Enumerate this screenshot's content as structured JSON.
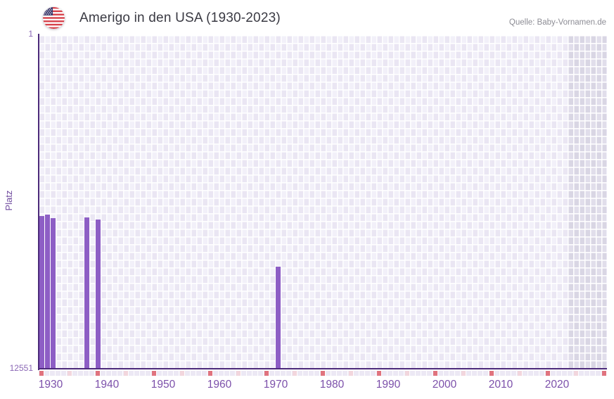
{
  "header": {
    "title": "Amerigo in den USA (1930-2023)",
    "source": "Quelle: Baby-Vornamen.de",
    "flag_icon": "us-flag-icon"
  },
  "chart_data": {
    "type": "bar",
    "title": "Amerigo in den USA (1930-2023)",
    "xlabel": "",
    "ylabel": "Platz",
    "y_axis": {
      "top_label": "1",
      "bottom_label": "12551",
      "min": 1,
      "max": 12551,
      "inverted": true
    },
    "x_axis": {
      "start_year": 1930,
      "end_year": 2030,
      "data_end_year": 2023,
      "tick_years": [
        1930,
        1940,
        1950,
        1960,
        1970,
        1980,
        1990,
        2000,
        2010,
        2020
      ],
      "tick_labels": [
        "1930",
        "1940",
        "1950",
        "1960",
        "1970",
        "1980",
        "1990",
        "2000",
        "2010",
        "2020"
      ]
    },
    "points": [
      {
        "year": 1930,
        "rank": 6820
      },
      {
        "year": 1931,
        "rank": 6765
      },
      {
        "year": 1932,
        "rank": 6895
      },
      {
        "year": 1938,
        "rank": 6880
      },
      {
        "year": 1940,
        "rank": 6960
      },
      {
        "year": 1972,
        "rank": 8740
      }
    ],
    "decade_mark_years": [
      1930,
      1940,
      1950,
      1960,
      1970,
      1980,
      1990,
      2000,
      2010,
      2020,
      2030
    ],
    "half_decade_mark_years": [
      1935,
      1945,
      1955,
      1965,
      1975,
      1985,
      1995,
      2005,
      2015,
      2025
    ],
    "future_shaded_region": {
      "from_year": 2024,
      "to_year": 2030
    },
    "grid": true,
    "legend": false,
    "colors": {
      "bar": "#8d5ec5",
      "axis_line": "#4c2a7a",
      "grid_cell_light": "#f2f0f9",
      "grid_cell_dark": "#eae6f3",
      "future_cell_light": "#e1deeb",
      "future_cell_dark": "#d9d6e4",
      "decade_mark": "#e0737e",
      "half_decade_mark": "#f2d6dd",
      "tick_row_cell": "#ece8f4",
      "x_tick_label": "#7c50aa",
      "y_tick_label": "#8a67b5",
      "y_axis_title": "#6f4a9e",
      "title": "#3a3a43",
      "source": "#8d8d95"
    }
  }
}
